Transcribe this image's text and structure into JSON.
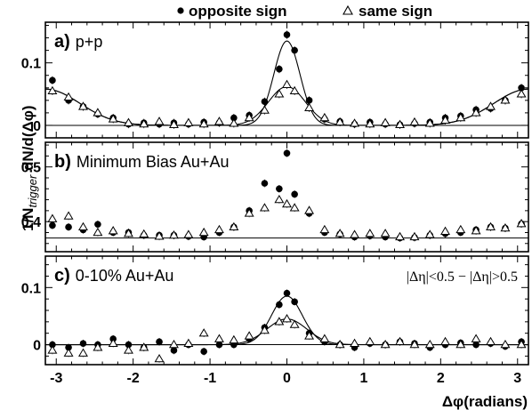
{
  "legend": {
    "opposite_label": "opposite sign",
    "same_label": "same sign"
  },
  "axes": {
    "xlabel": "Δφ(radians)",
    "ylabel_prefix": "1/N",
    "ylabel_sub": "trigger",
    "ylabel_suffix": " dN/d(Δφ)"
  },
  "chart_data": [
    {
      "type": "scatter",
      "panel_tag": "a)",
      "panel_label": "p+p",
      "annotation": "",
      "xlim": [
        -3.14159,
        3.14159
      ],
      "ylim": [
        -0.02,
        0.165
      ],
      "yticks": [
        0,
        0.1
      ],
      "ytick_labels": [
        "0",
        "0.1"
      ],
      "xticks": [
        -3,
        -2,
        -1,
        0,
        1,
        2,
        3
      ],
      "xtick_labels": [],
      "baseline": 0,
      "series": [
        {
          "name": "opposite sign",
          "marker": "circle",
          "x": [
            -3.05,
            -2.84,
            -2.65,
            -2.46,
            -2.26,
            -2.06,
            -1.86,
            -1.66,
            -1.47,
            -1.28,
            -1.08,
            -0.88,
            -0.69,
            -0.49,
            -0.29,
            -0.1,
            0.0,
            0.1,
            0.29,
            0.49,
            0.69,
            0.88,
            1.08,
            1.28,
            1.47,
            1.66,
            1.86,
            2.06,
            2.26,
            2.46,
            2.65,
            2.84,
            3.05
          ],
          "y": [
            0.072,
            0.04,
            0.03,
            0.018,
            0.012,
            0.002,
            0.004,
            0.002,
            0.004,
            0.002,
            0.005,
            0.004,
            0.012,
            0.016,
            0.038,
            0.09,
            0.145,
            0.12,
            0.04,
            0.01,
            0.006,
            0.002,
            0.005,
            0.002,
            0.001,
            0.003,
            0.005,
            0.012,
            0.015,
            0.025,
            0.027,
            0.04,
            0.06
          ]
        },
        {
          "name": "same sign",
          "marker": "triangle",
          "x": [
            -3.05,
            -2.84,
            -2.65,
            -2.46,
            -2.26,
            -2.06,
            -1.86,
            -1.66,
            -1.47,
            -1.28,
            -1.08,
            -0.88,
            -0.69,
            -0.49,
            -0.29,
            -0.1,
            0.0,
            0.1,
            0.29,
            0.49,
            0.69,
            0.88,
            1.08,
            1.28,
            1.47,
            1.66,
            1.86,
            2.06,
            2.26,
            2.46,
            2.65,
            2.84,
            3.05
          ],
          "y": [
            0.055,
            0.045,
            0.03,
            0.02,
            0.01,
            0.004,
            0.002,
            0.006,
            0.001,
            0.004,
            0.002,
            0.006,
            0.003,
            0.012,
            0.024,
            0.05,
            0.065,
            0.055,
            0.028,
            0.012,
            0.005,
            0.003,
            0.002,
            0.004,
            0.001,
            0.005,
            0.003,
            0.008,
            0.012,
            0.02,
            0.03,
            0.04,
            0.05
          ]
        }
      ],
      "fits": [
        {
          "series": "opposite sign",
          "pedestal": 0.0,
          "near_amp": 0.135,
          "near_sigma": 0.17,
          "away_amp": 0.058,
          "away_sigma": 0.45
        },
        {
          "series": "same sign",
          "pedestal": 0.0,
          "near_amp": 0.062,
          "near_sigma": 0.24,
          "away_amp": 0.058,
          "away_sigma": 0.45
        }
      ]
    },
    {
      "type": "scatter",
      "panel_tag": "b)",
      "panel_label": "Minimum Bias Au+Au",
      "annotation": "",
      "xlim": [
        -3.14159,
        3.14159
      ],
      "ylim": [
        0.345,
        0.545
      ],
      "yticks": [
        0.4,
        0.5
      ],
      "ytick_labels": [
        "0.4",
        "0.5"
      ],
      "xticks": [
        -3,
        -2,
        -1,
        0,
        1,
        2,
        3
      ],
      "xtick_labels": [],
      "baseline": 0.37,
      "series": [
        {
          "name": "opposite sign",
          "marker": "circle",
          "x": [
            -3.05,
            -2.84,
            -2.65,
            -2.46,
            -2.26,
            -2.06,
            -1.86,
            -1.66,
            -1.47,
            -1.28,
            -1.08,
            -0.88,
            -0.69,
            -0.49,
            -0.29,
            -0.1,
            0.0,
            0.1,
            0.29,
            0.49,
            0.69,
            0.88,
            1.08,
            1.28,
            1.47,
            1.66,
            1.86,
            2.06,
            2.26,
            2.46,
            2.65,
            2.84,
            3.05
          ],
          "y": [
            0.393,
            0.39,
            0.385,
            0.395,
            0.38,
            0.38,
            0.375,
            0.375,
            0.375,
            0.373,
            0.372,
            0.38,
            0.39,
            0.42,
            0.47,
            0.46,
            0.525,
            0.45,
            0.415,
            0.38,
            0.377,
            0.372,
            0.374,
            0.372,
            0.37,
            0.371,
            0.375,
            0.378,
            0.38,
            0.385,
            0.39,
            0.388,
            0.396
          ]
        },
        {
          "name": "same sign",
          "marker": "triangle",
          "x": [
            -3.05,
            -2.84,
            -2.65,
            -2.46,
            -2.26,
            -2.06,
            -1.86,
            -1.66,
            -1.47,
            -1.28,
            -1.08,
            -0.88,
            -0.69,
            -0.49,
            -0.29,
            -0.1,
            0.0,
            0.1,
            0.29,
            0.49,
            0.69,
            0.88,
            1.08,
            1.28,
            1.47,
            1.66,
            1.86,
            2.06,
            2.26,
            2.46,
            2.65,
            2.84,
            3.05
          ],
          "y": [
            0.405,
            0.41,
            0.39,
            0.38,
            0.383,
            0.378,
            0.377,
            0.373,
            0.375,
            0.376,
            0.38,
            0.385,
            0.39,
            0.415,
            0.425,
            0.44,
            0.432,
            0.425,
            0.42,
            0.385,
            0.378,
            0.376,
            0.378,
            0.378,
            0.372,
            0.372,
            0.376,
            0.382,
            0.385,
            0.383,
            0.39,
            0.388,
            0.396
          ]
        }
      ],
      "fits": []
    },
    {
      "type": "scatter",
      "panel_tag": "c)",
      "panel_label": "0-10% Au+Au",
      "annotation": "|Δη|<0.5 − |Δη|>0.5",
      "xlim": [
        -3.14159,
        3.14159
      ],
      "ylim": [
        -0.035,
        0.155
      ],
      "yticks": [
        0,
        0.1
      ],
      "ytick_labels": [
        "0",
        "0.1"
      ],
      "xticks": [
        -3,
        -2,
        -1,
        0,
        1,
        2,
        3
      ],
      "xtick_labels": [
        "-3",
        "-2",
        "-1",
        "0",
        "1",
        "2",
        "3"
      ],
      "baseline": 0,
      "series": [
        {
          "name": "opposite sign",
          "marker": "circle",
          "x": [
            -3.05,
            -2.84,
            -2.65,
            -2.46,
            -2.26,
            -2.06,
            -1.86,
            -1.66,
            -1.47,
            -1.28,
            -1.08,
            -0.88,
            -0.69,
            -0.49,
            -0.29,
            -0.1,
            0.0,
            0.1,
            0.29,
            0.49,
            0.69,
            0.88,
            1.08,
            1.28,
            1.47,
            1.66,
            1.86,
            2.06,
            2.26,
            2.46,
            2.65,
            2.84,
            3.05
          ],
          "y": [
            0.0,
            -0.005,
            0.002,
            0.0,
            0.01,
            0.0,
            -0.005,
            0.005,
            -0.01,
            0.0,
            -0.012,
            0.0,
            0.0,
            0.01,
            0.03,
            0.07,
            0.09,
            0.075,
            0.02,
            0.005,
            0.0,
            -0.005,
            0.002,
            0.0,
            0.005,
            0.002,
            -0.005,
            0.0,
            0.003,
            0.0,
            0.002,
            -0.003,
            0.005
          ]
        },
        {
          "name": "same sign",
          "marker": "triangle",
          "x": [
            -3.05,
            -2.84,
            -2.65,
            -2.46,
            -2.26,
            -2.06,
            -1.86,
            -1.66,
            -1.47,
            -1.28,
            -1.08,
            -0.88,
            -0.69,
            -0.49,
            -0.29,
            -0.1,
            0.0,
            0.1,
            0.29,
            0.49,
            0.69,
            0.88,
            1.08,
            1.28,
            1.47,
            1.66,
            1.86,
            2.06,
            2.26,
            2.46,
            2.65,
            2.84,
            3.05
          ],
          "y": [
            -0.01,
            -0.015,
            -0.015,
            -0.005,
            0.002,
            -0.01,
            -0.005,
            -0.025,
            0.0,
            0.002,
            0.02,
            0.01,
            0.008,
            0.015,
            0.025,
            0.04,
            0.045,
            0.035,
            0.015,
            0.01,
            0.0,
            0.002,
            0.005,
            0.0,
            0.005,
            0.0,
            0.0,
            0.005,
            0.0,
            0.01,
            0.005,
            0.0,
            0.0
          ]
        }
      ],
      "fits": [
        {
          "series": "opposite sign",
          "pedestal": 0.0,
          "near_amp": 0.085,
          "near_sigma": 0.2,
          "away_amp": 0.0,
          "away_sigma": 0.5
        },
        {
          "series": "same sign",
          "pedestal": 0.0,
          "near_amp": 0.045,
          "near_sigma": 0.26,
          "away_amp": 0.0,
          "away_sigma": 0.5
        }
      ]
    }
  ]
}
